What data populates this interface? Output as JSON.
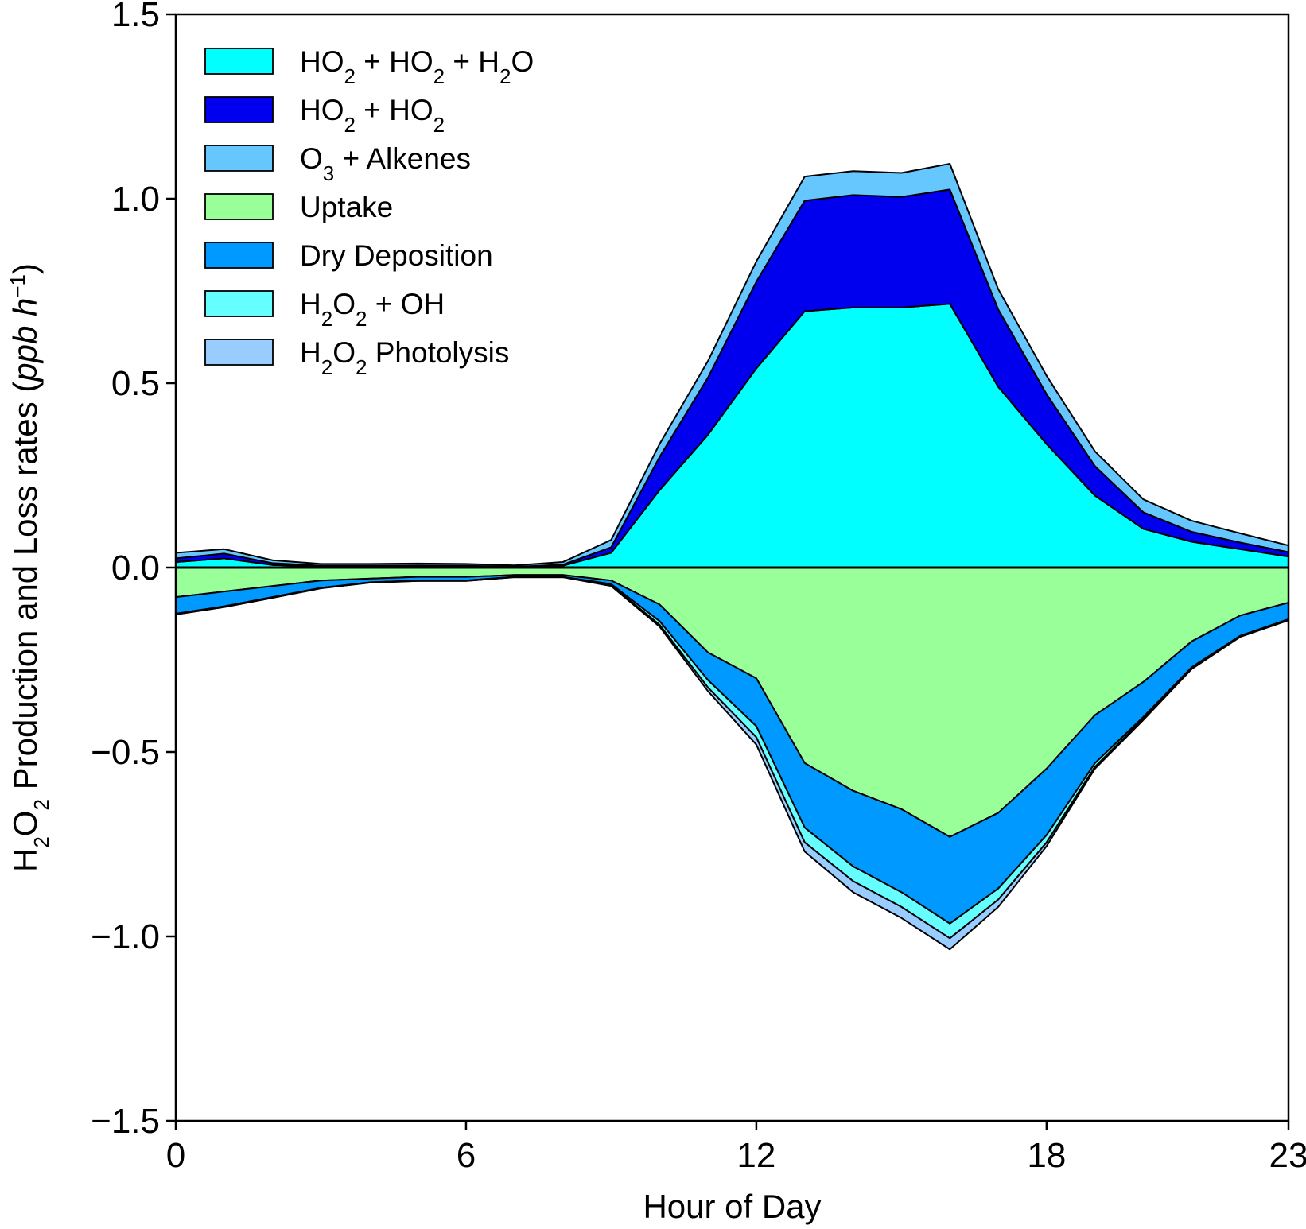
{
  "chart_data": {
    "type": "area",
    "subtype": "stacked-production-loss",
    "xlabel": "Hour of Day",
    "ylabel": {
      "text": "H₂O₂ Production and Loss rates (ppb h⁻¹)",
      "parts": [
        "H",
        "2",
        "O",
        "2",
        " Production and Loss rates (",
        "ppb h",
        "−1",
        ")"
      ]
    },
    "xlim": [
      0,
      23
    ],
    "ylim": [
      -1.5,
      1.5
    ],
    "x_ticks": [
      0,
      6,
      12,
      18,
      23
    ],
    "x_tick_labels": [
      "0",
      "6",
      "12",
      "18",
      "23"
    ],
    "y_ticks": [
      1.5,
      1.0,
      0.5,
      0.0,
      -0.5,
      -1.0,
      -1.5
    ],
    "y_tick_labels": [
      "1.5",
      "1.0",
      "0.5",
      "0.0",
      "−0.5",
      "−1.0",
      "−1.5"
    ],
    "grid": false,
    "legend_position": "top-left",
    "x": [
      0,
      1,
      2,
      3,
      4,
      5,
      6,
      7,
      8,
      9,
      10,
      11,
      12,
      13,
      14,
      15,
      16,
      17,
      18,
      19,
      20,
      21,
      22,
      23
    ],
    "production_series": [
      {
        "name": "HO2 + HO2 + H2O",
        "legend": [
          "HO",
          "2",
          " + HO",
          "2",
          " + H",
          "2",
          "O"
        ],
        "color": "#00FFFF",
        "values": [
          0.015,
          0.025,
          0.007,
          0.003,
          0.003,
          0.004,
          0.003,
          0.001,
          0.005,
          0.04,
          0.21,
          0.36,
          0.54,
          0.695,
          0.705,
          0.705,
          0.715,
          0.49,
          0.335,
          0.195,
          0.105,
          0.07,
          0.05,
          0.03
        ]
      },
      {
        "name": "HO2 + HO2",
        "legend": [
          "HO",
          "2",
          " + HO",
          "2"
        ],
        "color": "#0000EE",
        "values": [
          0.01,
          0.013,
          0.005,
          0.002,
          0.002,
          0.002,
          0.002,
          0.001,
          0.003,
          0.015,
          0.09,
          0.155,
          0.235,
          0.3,
          0.305,
          0.3,
          0.31,
          0.21,
          0.135,
          0.08,
          0.045,
          0.027,
          0.018,
          0.012
        ]
      },
      {
        "name": "O3 + Alkenes",
        "legend": [
          "O",
          "3",
          " + Alkenes"
        ],
        "color": "#66C7FF",
        "values": [
          0.015,
          0.012,
          0.008,
          0.005,
          0.005,
          0.005,
          0.005,
          0.004,
          0.007,
          0.02,
          0.035,
          0.045,
          0.055,
          0.065,
          0.065,
          0.065,
          0.07,
          0.055,
          0.05,
          0.04,
          0.035,
          0.03,
          0.025,
          0.018
        ]
      }
    ],
    "loss_series": [
      {
        "name": "Uptake",
        "legend": [
          "Uptake"
        ],
        "color": "#99FF99",
        "values": [
          -0.08,
          -0.065,
          -0.05,
          -0.035,
          -0.03,
          -0.025,
          -0.025,
          -0.02,
          -0.02,
          -0.035,
          -0.1,
          -0.23,
          -0.3,
          -0.53,
          -0.605,
          -0.655,
          -0.73,
          -0.665,
          -0.545,
          -0.4,
          -0.31,
          -0.2,
          -0.13,
          -0.095
        ]
      },
      {
        "name": "Dry Deposition",
        "legend": [
          "Dry Deposition"
        ],
        "color": "#0099FF",
        "values": [
          -0.045,
          -0.04,
          -0.03,
          -0.02,
          -0.01,
          -0.01,
          -0.01,
          -0.005,
          -0.005,
          -0.01,
          -0.045,
          -0.075,
          -0.13,
          -0.175,
          -0.205,
          -0.225,
          -0.235,
          -0.205,
          -0.18,
          -0.13,
          -0.095,
          -0.07,
          -0.055,
          -0.045
        ]
      },
      {
        "name": "H2O2 + OH",
        "legend": [
          "H",
          "2",
          "O",
          "2",
          " + OH"
        ],
        "color": "#66FFFF",
        "values": [
          -0.002,
          -0.002,
          -0.002,
          -0.001,
          -0.001,
          -0.001,
          -0.001,
          -0.001,
          -0.001,
          -0.003,
          -0.01,
          -0.02,
          -0.03,
          -0.04,
          -0.04,
          -0.04,
          -0.04,
          -0.03,
          -0.02,
          -0.01,
          -0.005,
          -0.003,
          -0.002,
          -0.002
        ]
      },
      {
        "name": "H2O2 Photolysis",
        "legend": [
          "H",
          "2",
          "O",
          "2",
          " Photolysis"
        ],
        "color": "#99CCFF",
        "values": [
          0,
          0,
          0,
          0,
          0,
          0,
          0,
          0,
          0,
          -0.002,
          -0.005,
          -0.01,
          -0.02,
          -0.025,
          -0.03,
          -0.03,
          -0.03,
          -0.02,
          -0.01,
          -0.005,
          -0.003,
          -0.002,
          -0.001,
          -0.001
        ]
      }
    ]
  }
}
